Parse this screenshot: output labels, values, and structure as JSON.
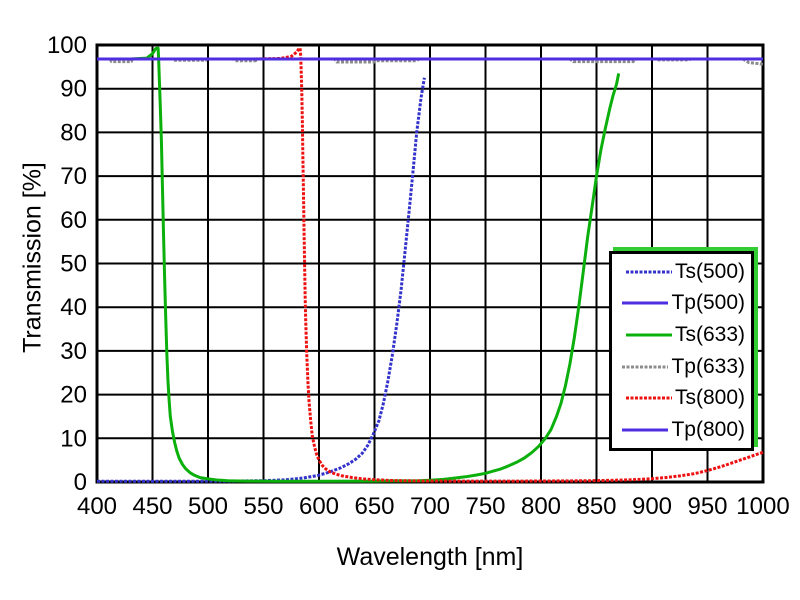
{
  "page": {
    "background": "#ffffff"
  },
  "chart_data": {
    "type": "line",
    "title": "",
    "xlabel": "Wavelength [nm]",
    "ylabel": "Transmission [%]",
    "xlim": [
      400,
      1000
    ],
    "ylim": [
      0,
      100
    ],
    "xticks": [
      400,
      450,
      500,
      550,
      600,
      650,
      700,
      750,
      800,
      850,
      900,
      950,
      1000
    ],
    "yticks": [
      0,
      10,
      20,
      30,
      40,
      50,
      60,
      70,
      80,
      90,
      100
    ],
    "grid": true,
    "grid_color": "#000000",
    "legend_position": "middle-right",
    "legend_shadow_color": "#33cc33",
    "series": [
      {
        "name": "Ts(500)",
        "color": "#3333cc",
        "style": "stippled",
        "points": [
          [
            400,
            0.15
          ],
          [
            460,
            0.15
          ],
          [
            520,
            0.2
          ],
          [
            550,
            0.3
          ],
          [
            570,
            0.5
          ],
          [
            585,
            0.9
          ],
          [
            597,
            1.4
          ],
          [
            606,
            2.0
          ],
          [
            613,
            2.6
          ],
          [
            620,
            3.3
          ],
          [
            627,
            4.2
          ],
          [
            633,
            5.2
          ],
          [
            639,
            6.6
          ],
          [
            644,
            8.4
          ],
          [
            649,
            11
          ],
          [
            654,
            14
          ],
          [
            658,
            18
          ],
          [
            662,
            23
          ],
          [
            666,
            29
          ],
          [
            670,
            36
          ],
          [
            674,
            44
          ],
          [
            678,
            54
          ],
          [
            682,
            64
          ],
          [
            685,
            72
          ],
          [
            688,
            80
          ],
          [
            690,
            84
          ],
          [
            692,
            88
          ],
          [
            694,
            91
          ],
          [
            695,
            92.5
          ]
        ]
      },
      {
        "name": "Tp(500)",
        "color": "#4f2de0",
        "style": "solid",
        "points": [
          [
            400,
            96.8
          ],
          [
            1000,
            96.8
          ]
        ]
      },
      {
        "name": "Ts(633)",
        "color": "#0cb00c",
        "style": "solid",
        "points": [
          [
            400,
            96.8
          ],
          [
            430,
            96.8
          ],
          [
            445,
            97.0
          ],
          [
            450,
            98.0
          ],
          [
            453,
            99.2
          ],
          [
            455,
            99.3
          ],
          [
            455.5,
            97
          ],
          [
            456,
            93
          ],
          [
            457,
            86
          ],
          [
            458,
            78
          ],
          [
            459,
            67
          ],
          [
            460,
            56
          ],
          [
            461,
            46
          ],
          [
            462,
            37
          ],
          [
            463,
            29
          ],
          [
            464,
            23
          ],
          [
            465,
            18.5
          ],
          [
            466,
            15
          ],
          [
            468,
            11.5
          ],
          [
            470,
            9
          ],
          [
            472,
            7
          ],
          [
            474,
            5.5
          ],
          [
            477,
            4
          ],
          [
            480,
            3
          ],
          [
            484,
            2.1
          ],
          [
            488,
            1.5
          ],
          [
            493,
            1.0
          ],
          [
            500,
            0.7
          ],
          [
            508,
            0.45
          ],
          [
            518,
            0.3
          ],
          [
            535,
            0.2
          ],
          [
            560,
            0.15
          ],
          [
            600,
            0.15
          ],
          [
            650,
            0.2
          ],
          [
            690,
            0.3
          ],
          [
            700,
            0.4
          ],
          [
            712,
            0.6
          ],
          [
            722,
            0.9
          ],
          [
            732,
            1.2
          ],
          [
            742,
            1.6
          ],
          [
            750,
            2.0
          ],
          [
            757,
            2.5
          ],
          [
            764,
            3.0
          ],
          [
            771,
            3.7
          ],
          [
            778,
            4.5
          ],
          [
            785,
            5.5
          ],
          [
            792,
            6.8
          ],
          [
            798,
            8.2
          ],
          [
            804,
            10
          ],
          [
            809,
            12
          ],
          [
            814,
            15
          ],
          [
            818,
            18
          ],
          [
            822,
            22
          ],
          [
            826,
            27
          ],
          [
            830,
            33
          ],
          [
            834,
            40
          ],
          [
            838,
            48
          ],
          [
            842,
            56
          ],
          [
            846,
            63
          ],
          [
            850,
            70
          ],
          [
            854,
            76
          ],
          [
            858,
            81
          ],
          [
            862,
            85.5
          ],
          [
            865,
            88.5
          ],
          [
            868,
            91
          ],
          [
            870,
            93.5
          ]
        ]
      },
      {
        "name": "Tp(633)",
        "color": "#8c8c8c",
        "style": "stippled",
        "points": [
          [
            400,
            96.8
          ],
          [
            412,
            96.8
          ],
          [
            413,
            96.2
          ],
          [
            431,
            96.2
          ],
          [
            432,
            96.8
          ],
          [
            468,
            96.8
          ],
          [
            469,
            96.5
          ],
          [
            498,
            96.5
          ],
          [
            499,
            96.8
          ],
          [
            523,
            96.8
          ],
          [
            524,
            96.4
          ],
          [
            543,
            96.4
          ],
          [
            544,
            96.8
          ],
          [
            614,
            96.8
          ],
          [
            616,
            96.1
          ],
          [
            650,
            96.1
          ],
          [
            652,
            96.4
          ],
          [
            688,
            96.4
          ],
          [
            690,
            96.8
          ],
          [
            826,
            96.8
          ],
          [
            829,
            96.2
          ],
          [
            883,
            96.2
          ],
          [
            886,
            96.8
          ],
          [
            903,
            96.8
          ],
          [
            905,
            96.6
          ],
          [
            933,
            96.6
          ],
          [
            935,
            96.8
          ],
          [
            982,
            96.8
          ],
          [
            987,
            96.0
          ],
          [
            1000,
            95.6
          ]
        ]
      },
      {
        "name": "Ts(800)",
        "color": "#ee1111",
        "style": "stippled",
        "points": [
          [
            400,
            96.8
          ],
          [
            540,
            96.8
          ],
          [
            565,
            96.9
          ],
          [
            575,
            97.4
          ],
          [
            580,
            98.4
          ],
          [
            582,
            99.2
          ],
          [
            583,
            99.3
          ],
          [
            583.5,
            97.5
          ],
          [
            584,
            94
          ],
          [
            584.5,
            89
          ],
          [
            585,
            82
          ],
          [
            585.5,
            74
          ],
          [
            586,
            66
          ],
          [
            586.5,
            58
          ],
          [
            587,
            50
          ],
          [
            587.5,
            43
          ],
          [
            588,
            37
          ],
          [
            589,
            29
          ],
          [
            590,
            23
          ],
          [
            591,
            18.5
          ],
          [
            592.5,
            14
          ],
          [
            594,
            10.5
          ],
          [
            596,
            8
          ],
          [
            598,
            6.2
          ],
          [
            600,
            5
          ],
          [
            603,
            3.8
          ],
          [
            606,
            3
          ],
          [
            610,
            2.3
          ],
          [
            615,
            1.8
          ],
          [
            621,
            1.4
          ],
          [
            630,
            1.0
          ],
          [
            640,
            0.7
          ],
          [
            652,
            0.5
          ],
          [
            665,
            0.35
          ],
          [
            685,
            0.25
          ],
          [
            720,
            0.2
          ],
          [
            780,
            0.2
          ],
          [
            820,
            0.25
          ],
          [
            845,
            0.3
          ],
          [
            865,
            0.4
          ],
          [
            885,
            0.55
          ],
          [
            900,
            0.75
          ],
          [
            912,
            1.0
          ],
          [
            925,
            1.4
          ],
          [
            938,
            1.9
          ],
          [
            948,
            2.5
          ],
          [
            958,
            3.2
          ],
          [
            968,
            4.0
          ],
          [
            977,
            4.8
          ],
          [
            985,
            5.5
          ],
          [
            992,
            6.1
          ],
          [
            1000,
            6.8
          ]
        ]
      },
      {
        "name": "Tp(800)",
        "color": "#4f2de0",
        "style": "solid",
        "points": [
          [
            400,
            96.8
          ],
          [
            1000,
            96.8
          ]
        ]
      }
    ]
  }
}
